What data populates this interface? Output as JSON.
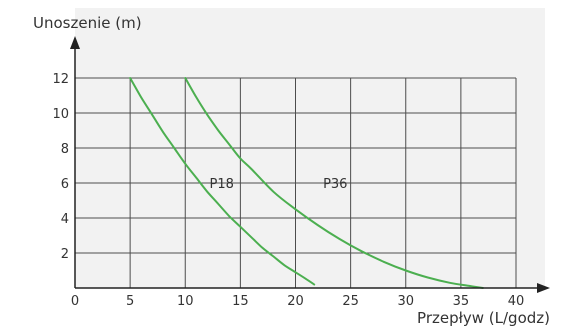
{
  "chart_data": {
    "type": "line",
    "ylabel": "Unoszenie (m)",
    "xlabel": "Przepływ (L/godz)",
    "xlim": [
      0,
      40
    ],
    "ylim": [
      0,
      12
    ],
    "xticks": [
      0,
      5,
      10,
      15,
      20,
      25,
      30,
      35,
      40
    ],
    "yticks": [
      2,
      4,
      6,
      8,
      10,
      12
    ],
    "grid": true,
    "colors": {
      "plot_background": "#f2f2f2",
      "grid": "#4d4d4d",
      "axis": "#222222",
      "curve": "#4caf50"
    },
    "series": [
      {
        "name": "P18",
        "x": [
          5,
          6,
          7,
          8,
          9,
          10,
          11,
          12,
          13,
          14,
          15,
          16,
          17,
          18,
          19,
          20,
          21,
          21.7
        ],
        "y": [
          12,
          10.9,
          9.9,
          8.9,
          8.0,
          7.1,
          6.3,
          5.5,
          4.8,
          4.1,
          3.5,
          2.9,
          2.3,
          1.8,
          1.3,
          0.9,
          0.5,
          0.2
        ]
      },
      {
        "name": "P36",
        "x": [
          10,
          11,
          12,
          13,
          14,
          15,
          16,
          18,
          20,
          22,
          24,
          26,
          28,
          30,
          32,
          34,
          36,
          37
        ],
        "y": [
          12,
          10.9,
          9.9,
          9.0,
          8.2,
          7.4,
          6.8,
          5.5,
          4.5,
          3.6,
          2.8,
          2.1,
          1.5,
          1.0,
          0.6,
          0.3,
          0.1,
          0
        ]
      }
    ],
    "series_label_anchor": [
      {
        "x": 12.2,
        "y": 6
      },
      {
        "x": 22.5,
        "y": 6
      }
    ]
  }
}
